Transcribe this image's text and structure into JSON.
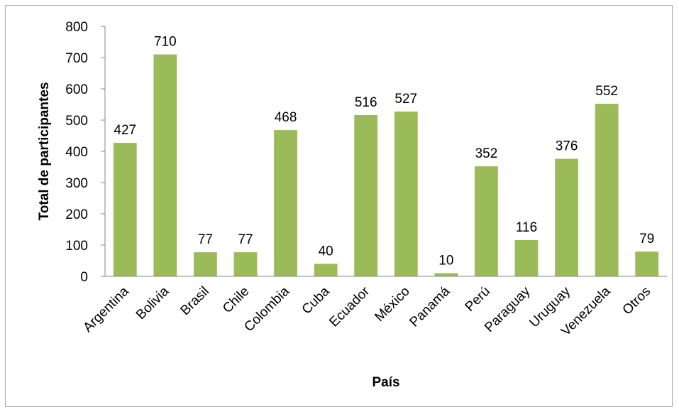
{
  "chart_data": {
    "type": "bar",
    "title": "",
    "xlabel": "País",
    "ylabel": "Total de participantes",
    "ylim": [
      0,
      800
    ],
    "yticks": [
      0,
      100,
      200,
      300,
      400,
      500,
      600,
      700,
      800
    ],
    "grid": false,
    "legend": "none",
    "bar_color": "#9bbb59",
    "categories": [
      "Argentina",
      "Bolivia",
      "Brasil",
      "Chile",
      "Colombia",
      "Cuba",
      "Ecuador",
      "México",
      "Panamá",
      "Perú",
      "Paraguay",
      "Uruguay",
      "Venezuela",
      "Otros"
    ],
    "values": [
      427,
      710,
      77,
      77,
      468,
      40,
      516,
      527,
      10,
      352,
      116,
      376,
      552,
      79
    ]
  }
}
